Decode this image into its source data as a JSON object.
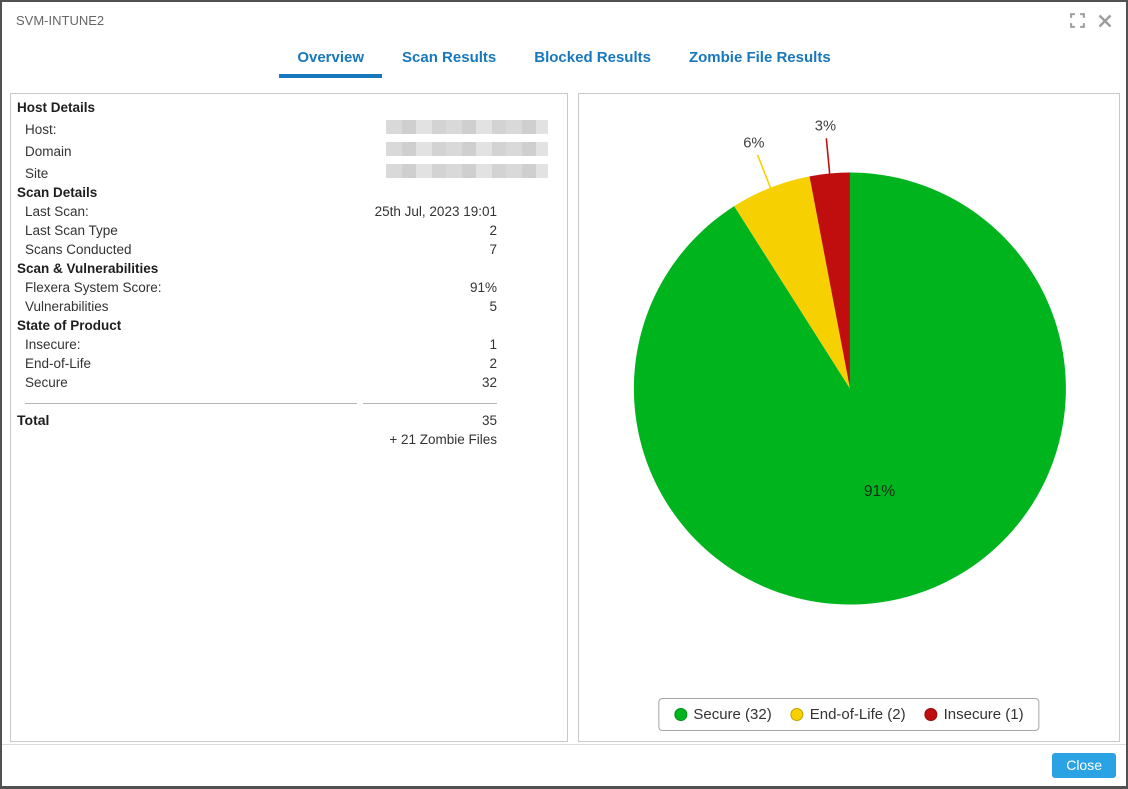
{
  "window": {
    "title": "SVM-INTUNE2"
  },
  "tabs": [
    {
      "label": "Overview",
      "active": true
    },
    {
      "label": "Scan Results",
      "active": false
    },
    {
      "label": "Blocked Results",
      "active": false
    },
    {
      "label": "Zombie File Results",
      "active": false
    }
  ],
  "details": {
    "rows": [
      {
        "type": "header",
        "label": "Host Details"
      },
      {
        "type": "item",
        "label": "Host:",
        "redacted": true
      },
      {
        "type": "item",
        "label": "Domain",
        "redacted": true
      },
      {
        "type": "item",
        "label": "Site",
        "redacted": true
      },
      {
        "type": "header",
        "label": "Scan Details"
      },
      {
        "type": "item",
        "label": "Last Scan:",
        "value": "25th Jul, 2023 19:01"
      },
      {
        "type": "item",
        "label": "Last Scan Type",
        "value": "2"
      },
      {
        "type": "item",
        "label": "Scans Conducted",
        "value": "7"
      },
      {
        "type": "header",
        "label": "Scan & Vulnerabilities"
      },
      {
        "type": "item",
        "label": "Flexera System Score:",
        "value": "91%"
      },
      {
        "type": "item",
        "label": "Vulnerabilities",
        "value": "5"
      },
      {
        "type": "header",
        "label": "State of Product"
      },
      {
        "type": "item",
        "label": "Insecure:",
        "value": "1"
      },
      {
        "type": "item",
        "label": "End-of-Life",
        "value": "2"
      },
      {
        "type": "item",
        "label": "Secure",
        "value": "32"
      }
    ],
    "total": {
      "label": "Total",
      "value": "35",
      "note": "+ 21 Zombie Files"
    }
  },
  "chart_data": {
    "type": "pie",
    "title": "",
    "start_angle_deg": 0,
    "direction": "clockwise",
    "slices": [
      {
        "name": "Secure",
        "count": 32,
        "percent": 91,
        "color": "#00b41e",
        "label": "91%",
        "label_position": "inside"
      },
      {
        "name": "End-of-Life",
        "count": 2,
        "percent": 6,
        "color": "#f6d000",
        "label": "6%",
        "label_position": "outside"
      },
      {
        "name": "Insecure",
        "count": 1,
        "percent": 3,
        "color": "#c00d0d",
        "label": "3%",
        "label_position": "outside"
      }
    ],
    "legend": {
      "position": "bottom",
      "items": [
        "Secure (32)",
        "End-of-Life (2)",
        "Insecure (1)"
      ]
    }
  },
  "footer": {
    "close_label": "Close"
  },
  "colors": {
    "tab_blue": "#1878be",
    "close_button_blue": "#2ba2e3",
    "secure_green": "#00b41e",
    "eol_yellow": "#f6d000",
    "insecure_red": "#c00d0d",
    "window_border": "#515151",
    "title_gray": "#666666"
  }
}
